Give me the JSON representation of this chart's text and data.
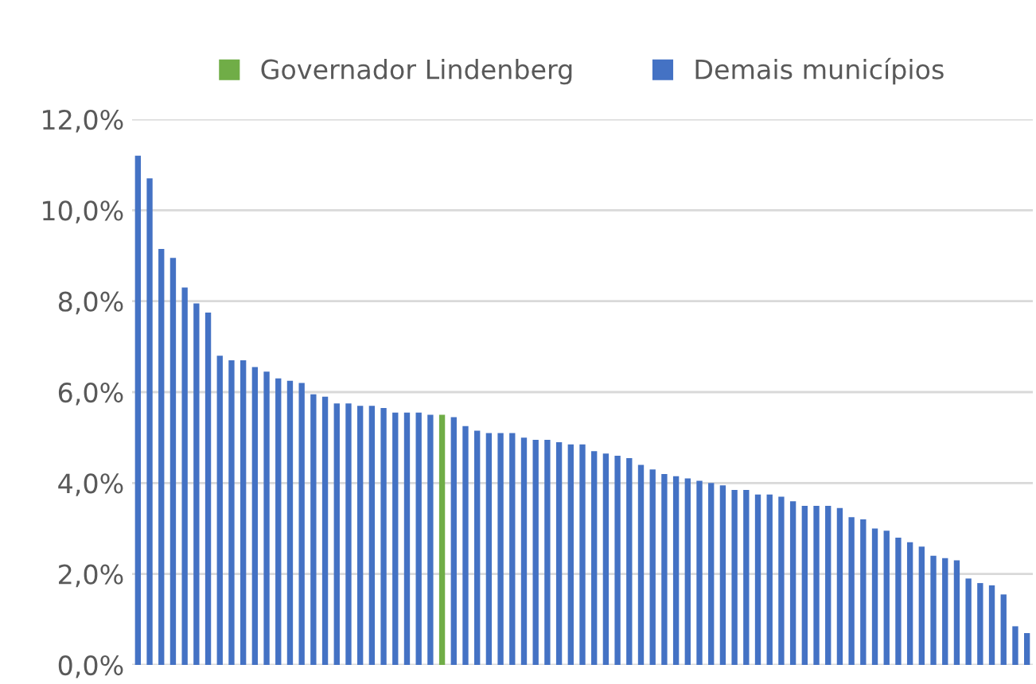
{
  "chart_data": {
    "type": "bar",
    "categories": [
      null,
      null,
      null,
      null,
      null,
      null,
      null,
      null,
      null,
      null,
      null,
      null,
      null,
      null,
      null,
      null,
      null,
      null,
      null,
      null,
      null,
      null,
      null,
      null,
      null,
      null,
      null,
      null,
      null,
      null,
      null,
      null,
      null,
      null,
      null,
      null,
      null,
      null,
      null,
      null,
      null,
      null,
      null,
      null,
      null,
      null,
      null,
      null,
      null,
      null,
      null,
      null,
      null,
      null,
      null,
      null,
      null,
      null,
      null,
      null,
      null,
      null,
      null,
      null,
      null,
      null,
      null,
      null,
      null,
      null,
      null,
      null,
      null,
      null,
      null,
      null,
      null
    ],
    "series": [
      {
        "name": "Governador Lindenberg",
        "color": "#70ad47",
        "values": [
          null,
          null,
          null,
          null,
          null,
          null,
          null,
          null,
          null,
          null,
          null,
          null,
          null,
          null,
          null,
          null,
          null,
          null,
          null,
          null,
          null,
          null,
          null,
          null,
          null,
          null,
          5.5,
          null,
          null,
          null,
          null,
          null,
          null,
          null,
          null,
          null,
          null,
          null,
          null,
          null,
          null,
          null,
          null,
          null,
          null,
          null,
          null,
          null,
          null,
          null,
          null,
          null,
          null,
          null,
          null,
          null,
          null,
          null,
          null,
          null,
          null,
          null,
          null,
          null,
          null,
          null,
          null,
          null,
          null,
          null,
          null,
          null,
          null,
          null,
          null,
          null,
          null
        ]
      },
      {
        "name": "Demais municípios",
        "color": "#4472c4",
        "values": [
          11.2,
          10.7,
          9.15,
          8.95,
          8.3,
          7.95,
          7.75,
          6.8,
          6.7,
          6.7,
          6.55,
          6.45,
          6.3,
          6.25,
          6.2,
          5.95,
          5.9,
          5.75,
          5.75,
          5.7,
          5.7,
          5.65,
          5.55,
          5.55,
          5.55,
          5.5,
          null,
          5.45,
          5.25,
          5.15,
          5.1,
          5.1,
          5.1,
          5.0,
          4.95,
          4.95,
          4.9,
          4.85,
          4.85,
          4.7,
          4.65,
          4.6,
          4.55,
          4.4,
          4.3,
          4.2,
          4.15,
          4.1,
          4.05,
          4.0,
          3.95,
          3.85,
          3.85,
          3.75,
          3.75,
          3.7,
          3.6,
          3.5,
          3.5,
          3.5,
          3.45,
          3.25,
          3.2,
          3.0,
          2.95,
          2.8,
          2.7,
          2.6,
          2.4,
          2.35,
          2.3,
          1.9,
          1.8,
          1.75,
          1.55,
          0.85,
          0.7
        ]
      }
    ],
    "ylim": [
      0,
      12
    ],
    "yticks": [
      {
        "value": 0,
        "label": "0,0%"
      },
      {
        "value": 2,
        "label": "2,0%"
      },
      {
        "value": 4,
        "label": "4,0%"
      },
      {
        "value": 6,
        "label": "6,0%"
      },
      {
        "value": 8,
        "label": "8,0%"
      },
      {
        "value": 10,
        "label": "10,0%"
      },
      {
        "value": 12,
        "label": "12,0%"
      }
    ],
    "grid": "y",
    "legend": "top",
    "tick_labels": "y"
  }
}
